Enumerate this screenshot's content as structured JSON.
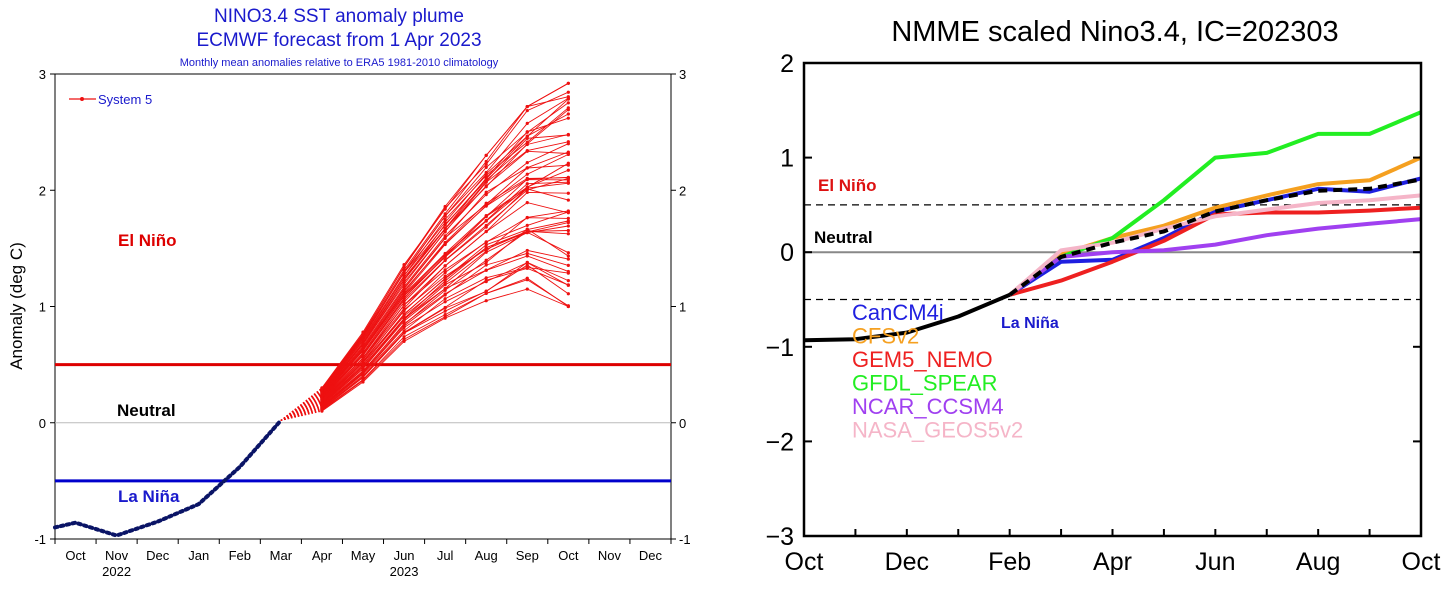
{
  "chart_data": [
    {
      "type": "line",
      "title": "NINO3.4 SST anomaly plume",
      "subtitle": "ECMWF forecast from 1 Apr 2023",
      "note": "Monthly mean anomalies relative to ERA5 1981-2010 climatology",
      "ylabel": "Anomaly (deg C)",
      "xlabel": "",
      "ylim": [
        -1,
        3
      ],
      "yticks": [
        -1,
        0,
        1,
        2,
        3
      ],
      "month_labels": [
        "Oct",
        "Nov",
        "Dec",
        "Jan",
        "Feb",
        "Mar",
        "Apr",
        "May",
        "Jun",
        "Jul",
        "Aug",
        "Sep",
        "Oct",
        "Nov",
        "Dec"
      ],
      "year_labels": [
        "2022",
        "2023"
      ],
      "legend": {
        "label": "System 5",
        "position": "top-left"
      },
      "regions": {
        "el_nino": "El Niño",
        "neutral": "Neutral",
        "la_nina": "La Niña"
      },
      "thresholds": {
        "el_nino": 0.5,
        "neutral": 0,
        "la_nina": -0.5
      },
      "observed": {
        "x": [
          "Oct 2022",
          "Oct 2022",
          "Nov 2022",
          "Dec 2022",
          "Jan 2023",
          "Feb 2023",
          "Mar 2023"
        ],
        "xi": [
          -0.5,
          0,
          1,
          2,
          3,
          4,
          5
        ],
        "values": [
          -0.9,
          -0.86,
          -0.97,
          -0.85,
          -0.7,
          -0.38,
          0.02
        ]
      },
      "ensemble": {
        "start": {
          "xi": 5,
          "value": 0.02
        },
        "months": [
          "Apr",
          "May",
          "Jun",
          "Jul",
          "Aug",
          "Sep",
          "Oct"
        ],
        "xi": [
          6,
          7,
          8,
          9,
          10,
          11,
          12
        ],
        "min": [
          0.1,
          0.35,
          0.7,
          0.9,
          1.05,
          1.15,
          1.0
        ],
        "max": [
          0.3,
          0.78,
          1.36,
          1.86,
          2.3,
          2.72,
          2.92
        ],
        "count": 51
      },
      "colors": {
        "ensemble": "#ee1111",
        "observed": "#0a1466",
        "el_nino_line": "#dd0000",
        "la_nina_line": "#0000cc",
        "neutral_line": "#bbbbbb",
        "legend_text": "#1a1acc"
      }
    },
    {
      "type": "line",
      "title": "NMME scaled Nino3.4, IC=202303",
      "ylim": [
        -3,
        2
      ],
      "yticks": [
        -3,
        -2,
        -1,
        0,
        1,
        2
      ],
      "x_labels": [
        "Oct",
        "Dec",
        "Feb",
        "Apr",
        "Jun",
        "Aug",
        "Oct"
      ],
      "regions": {
        "el_nino": "El Niño",
        "neutral": "Neutral",
        "la_nina": "La Niña"
      },
      "thresholds": {
        "el_nino": 0.5,
        "neutral": 0,
        "la_nina": -0.5
      },
      "observed": {
        "xi": [
          0,
          1,
          2,
          3,
          4
        ],
        "values": [
          -0.93,
          -0.92,
          -0.85,
          -0.68,
          -0.45
        ]
      },
      "series": [
        {
          "name": "CanCM4i",
          "color": "#1f1fe0",
          "xi": [
            4,
            5,
            6,
            7,
            8,
            9,
            10,
            11,
            12
          ],
          "values": [
            -0.45,
            -0.1,
            -0.08,
            0.15,
            0.43,
            0.55,
            0.67,
            0.64,
            0.78
          ]
        },
        {
          "name": "CFSv2",
          "color": "#f5a020",
          "xi": [
            4,
            5,
            6,
            7,
            8,
            9,
            10,
            11,
            12
          ],
          "values": [
            -0.45,
            -0.02,
            0.15,
            0.28,
            0.47,
            0.6,
            0.72,
            0.76,
            1.0
          ]
        },
        {
          "name": "GEM5_NEMO",
          "color": "#ee2020",
          "xi": [
            4,
            5,
            6,
            7,
            8,
            9,
            10,
            11,
            12
          ],
          "values": [
            -0.45,
            -0.3,
            -0.1,
            0.12,
            0.4,
            0.42,
            0.42,
            0.44,
            0.47
          ]
        },
        {
          "name": "GFDL_SPEAR",
          "color": "#22ee22",
          "xi": [
            4,
            5,
            6,
            7,
            8,
            9,
            10,
            11,
            12
          ],
          "values": [
            -0.45,
            -0.05,
            0.15,
            0.55,
            1.0,
            1.05,
            1.25,
            1.25,
            1.48
          ]
        },
        {
          "name": "NCAR_CCSM4",
          "color": "#a040f0",
          "xi": [
            4,
            5,
            6,
            7,
            8,
            9,
            10,
            11,
            12
          ],
          "values": [
            -0.45,
            -0.05,
            0.0,
            0.02,
            0.08,
            0.18,
            0.25,
            0.3,
            0.35
          ]
        },
        {
          "name": "NASA_GEOS5v2",
          "color": "#f5b5c8",
          "xi": [
            4,
            5,
            6,
            7,
            8,
            9,
            10,
            11,
            12
          ],
          "values": [
            -0.45,
            0.02,
            0.1,
            0.25,
            0.38,
            0.45,
            0.52,
            0.55,
            0.6
          ]
        }
      ],
      "ensemble_mean": {
        "color": "#000000",
        "xi": [
          4,
          5,
          6,
          7,
          8,
          9,
          10,
          11,
          12
        ],
        "values": [
          -0.45,
          -0.05,
          0.1,
          0.22,
          0.43,
          0.55,
          0.65,
          0.67,
          0.77
        ]
      },
      "colors": {
        "observed": "#000000",
        "neutral_line": "#888888",
        "threshold_line": "#000000",
        "el_nino_text": "#dd1111",
        "neutral_text": "#000000",
        "la_nina_text": "#1a1acc"
      }
    }
  ]
}
